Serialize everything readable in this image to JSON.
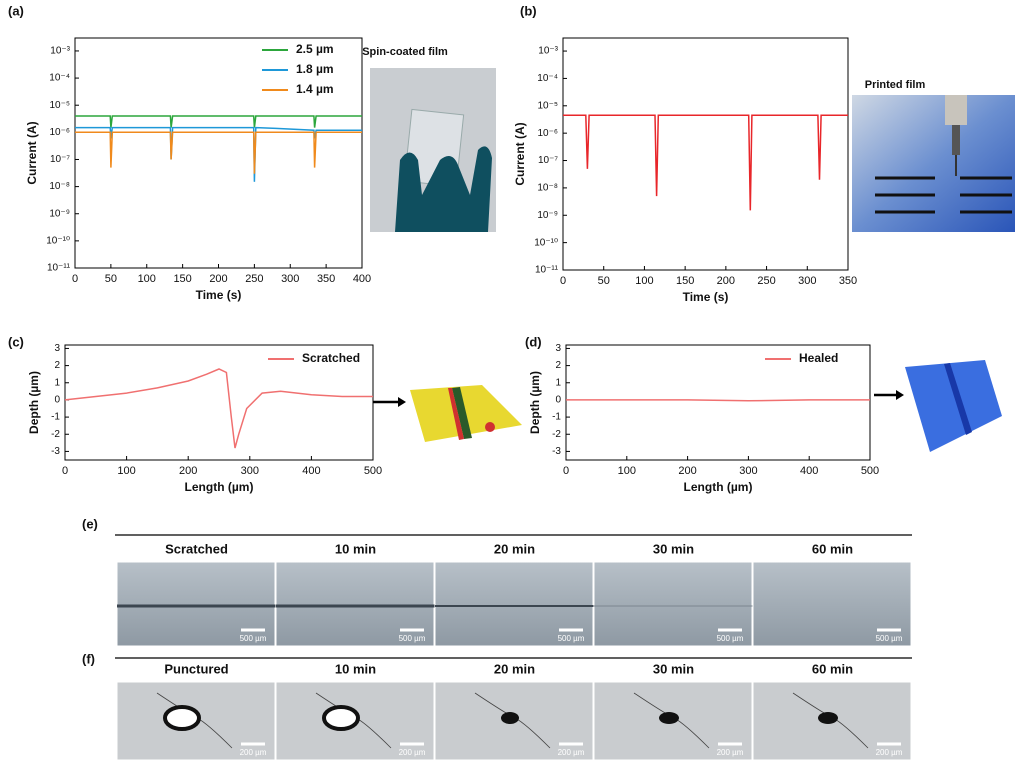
{
  "chart_data": [
    {
      "type": "line",
      "label": "(a)",
      "inset_title": "Spin-coated film",
      "xlabel": "Time (s)",
      "ylabel": "Current (A)",
      "xlim": [
        0,
        400
      ],
      "xticks": [
        0,
        50,
        100,
        150,
        200,
        250,
        300,
        350,
        400
      ],
      "yscale": "log",
      "ylim": [
        1e-11,
        0.003
      ],
      "yticks": [
        {
          "value": 1e-11,
          "label": "10⁻¹¹"
        },
        {
          "value": 1e-10,
          "label": "10⁻¹⁰"
        },
        {
          "value": 1e-09,
          "label": "10⁻⁹"
        },
        {
          "value": 1e-08,
          "label": "10⁻⁸"
        },
        {
          "value": 1e-07,
          "label": "10⁻⁷"
        },
        {
          "value": 1e-06,
          "label": "10⁻⁶"
        },
        {
          "value": 1e-05,
          "label": "10⁻⁵"
        },
        {
          "value": 0.0001,
          "label": "10⁻⁴"
        },
        {
          "value": 0.001,
          "label": "10⁻³"
        }
      ],
      "legend": "upper right",
      "series": [
        {
          "name": "2.5 µm",
          "color": "#2ca63c",
          "x": [
            0,
            49,
            50,
            52,
            53,
            133,
            134,
            136,
            137,
            249,
            250,
            252,
            253,
            333,
            334,
            336,
            337,
            400
          ],
          "values": [
            4e-06,
            4e-06,
            1.5e-06,
            4e-06,
            4e-06,
            4e-06,
            1.5e-06,
            4e-06,
            4e-06,
            4e-06,
            1.5e-06,
            4e-06,
            4e-06,
            4e-06,
            1.5e-06,
            4e-06,
            4e-06,
            4e-06
          ]
        },
        {
          "name": "1.8 µm",
          "color": "#1e98d8",
          "x": [
            0,
            49,
            50,
            52,
            53,
            133,
            134,
            136,
            137,
            249,
            250,
            252,
            253,
            280,
            333,
            334,
            336,
            337,
            400
          ],
          "values": [
            1.5e-06,
            1.5e-06,
            6e-07,
            1.5e-06,
            1.5e-06,
            1.5e-06,
            1e-07,
            1.5e-06,
            1.5e-06,
            1.5e-06,
            1.5e-08,
            1.5e-06,
            1.5e-06,
            1.4e-06,
            1.2e-06,
            6e-07,
            1.2e-06,
            1.2e-06,
            1.2e-06
          ]
        },
        {
          "name": "1.4 µm",
          "color": "#f08a1c",
          "x": [
            0,
            49,
            50,
            52,
            53,
            133,
            134,
            136,
            137,
            249,
            250,
            252,
            253,
            333,
            334,
            336,
            337,
            400
          ],
          "values": [
            1e-06,
            1e-06,
            5e-08,
            1e-06,
            1e-06,
            1e-06,
            1e-07,
            1e-06,
            1e-06,
            1e-06,
            3e-08,
            1e-06,
            1e-06,
            1e-06,
            5e-08,
            1e-06,
            1e-06,
            1e-06
          ]
        }
      ]
    },
    {
      "type": "line",
      "label": "(b)",
      "inset_title": "Printed film",
      "xlabel": "Time (s)",
      "ylabel": "Current (A)",
      "xlim": [
        0,
        350
      ],
      "xticks": [
        0,
        50,
        100,
        150,
        200,
        250,
        300,
        350
      ],
      "yscale": "log",
      "ylim": [
        1e-11,
        0.003
      ],
      "yticks": [
        {
          "value": 1e-11,
          "label": "10⁻¹¹"
        },
        {
          "value": 1e-10,
          "label": "10⁻¹⁰"
        },
        {
          "value": 1e-09,
          "label": "10⁻⁹"
        },
        {
          "value": 1e-08,
          "label": "10⁻⁸"
        },
        {
          "value": 1e-07,
          "label": "10⁻⁷"
        },
        {
          "value": 1e-06,
          "label": "10⁻⁶"
        },
        {
          "value": 1e-05,
          "label": "10⁻⁵"
        },
        {
          "value": 0.0001,
          "label": "10⁻⁴"
        },
        {
          "value": 0.001,
          "label": "10⁻³"
        }
      ],
      "series": [
        {
          "color": "#e8262a",
          "x": [
            0,
            28,
            30,
            32,
            113,
            115,
            117,
            228,
            230,
            232,
            313,
            315,
            317,
            350
          ],
          "values": [
            4.5e-06,
            4.5e-06,
            5e-08,
            4.5e-06,
            4.5e-06,
            5e-09,
            4.5e-06,
            4.5e-06,
            1.5e-09,
            4.5e-06,
            4.5e-06,
            2e-08,
            4.5e-06,
            4.5e-06
          ]
        }
      ]
    },
    {
      "type": "line",
      "label": "(c)",
      "xlabel": "Length (µm)",
      "ylabel": "Depth (µm)",
      "xlim": [
        0,
        500
      ],
      "xticks": [
        0,
        100,
        200,
        300,
        400,
        500
      ],
      "ylim": [
        -3.5,
        3.2
      ],
      "yticks": [
        -3,
        -2,
        -1,
        0,
        1,
        2,
        3
      ],
      "legend": "upper right",
      "series": [
        {
          "name": "Scratched",
          "color": "#f07070",
          "x": [
            0,
            50,
            100,
            150,
            200,
            230,
            250,
            262,
            270,
            276,
            282,
            295,
            320,
            350,
            400,
            450,
            500
          ],
          "values": [
            0,
            0.2,
            0.4,
            0.7,
            1.1,
            1.5,
            1.8,
            1.6,
            -1,
            -2.8,
            -2,
            -0.5,
            0.4,
            0.5,
            0.3,
            0.2,
            0.2
          ]
        }
      ]
    },
    {
      "type": "line",
      "label": "(d)",
      "xlabel": "Length (µm)",
      "ylabel": "Depth (µm)",
      "xlim": [
        0,
        500
      ],
      "xticks": [
        0,
        100,
        200,
        300,
        400,
        500
      ],
      "ylim": [
        -3.5,
        3.2
      ],
      "yticks": [
        -3,
        -2,
        -1,
        0,
        1,
        2,
        3
      ],
      "legend": "upper right",
      "series": [
        {
          "name": "Healed",
          "color": "#f07070",
          "x": [
            0,
            100,
            200,
            300,
            400,
            500
          ],
          "values": [
            0,
            0,
            0,
            -0.05,
            0,
            0
          ]
        }
      ]
    }
  ],
  "micrographs": [
    {
      "label": "(e)",
      "columns": [
        "Scratched",
        "10 min",
        "20 min",
        "30 min",
        "60 min"
      ],
      "scale_bar": "500 µm"
    },
    {
      "label": "(f)",
      "columns": [
        "Punctured",
        "10 min",
        "20 min",
        "30 min",
        "60 min"
      ],
      "scale_bar": "200 µm"
    }
  ]
}
